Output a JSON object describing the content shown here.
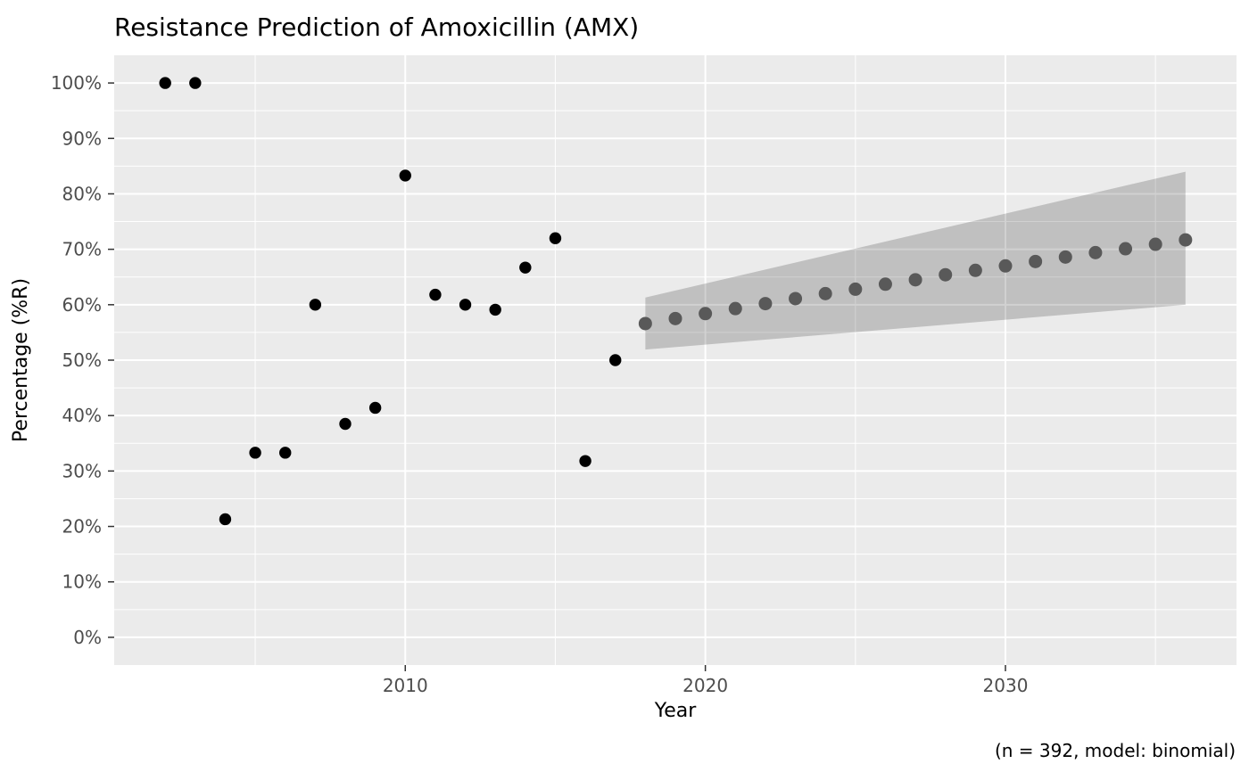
{
  "chart_data": {
    "type": "scatter",
    "title": "Resistance Prediction of Amoxicillin (AMX)",
    "xlabel": "Year",
    "ylabel": "Percentage (%R)",
    "caption": "(n = 392, model: binomial)",
    "xlim": [
      2000.3,
      2037.7
    ],
    "ylim": [
      -5,
      105
    ],
    "grid": true,
    "legend_position": "none",
    "x_major_ticks": [
      2010,
      2020,
      2030
    ],
    "x_tick_labels": [
      "2010",
      "2020",
      "2030"
    ],
    "x_minor_ticks": [
      2005,
      2015,
      2025,
      2035
    ],
    "y_major_ticks": [
      0,
      10,
      20,
      30,
      40,
      50,
      60,
      70,
      80,
      90,
      100
    ],
    "y_tick_labels": [
      "0%",
      "10%",
      "20%",
      "30%",
      "40%",
      "50%",
      "60%",
      "70%",
      "80%",
      "90%",
      "100%"
    ],
    "y_minor_ticks": [
      5,
      15,
      25,
      35,
      45,
      55,
      65,
      75,
      85,
      95
    ],
    "series": [
      {
        "name": "observed",
        "color": "#000000",
        "x": [
          2002,
          2003,
          2004,
          2005,
          2006,
          2007,
          2008,
          2009,
          2010,
          2011,
          2012,
          2013,
          2014,
          2015,
          2016,
          2017
        ],
        "y": [
          100,
          100,
          21.3,
          33.3,
          33.3,
          60.0,
          38.5,
          41.4,
          83.3,
          61.8,
          60.0,
          59.1,
          66.7,
          72.0,
          31.8,
          50.0
        ]
      },
      {
        "name": "predicted",
        "color": "#595959",
        "x": [
          2018,
          2019,
          2020,
          2021,
          2022,
          2023,
          2024,
          2025,
          2026,
          2027,
          2028,
          2029,
          2030,
          2031,
          2032,
          2033,
          2034,
          2035,
          2036
        ],
        "y": [
          56.6,
          57.5,
          58.4,
          59.3,
          60.2,
          61.1,
          62.0,
          62.8,
          63.7,
          64.5,
          65.4,
          66.2,
          67.0,
          67.8,
          68.6,
          69.4,
          70.1,
          70.9,
          71.7
        ]
      }
    ],
    "ribbon": {
      "name": "confidence-interval",
      "color": "rgba(0,0,0,0.18)",
      "x": [
        2018,
        2036
      ],
      "lower": [
        51.9,
        60.0
      ],
      "upper": [
        61.3,
        84.0
      ]
    }
  },
  "theme": {
    "background": "#ffffff",
    "panel_bg": "#ebebeb",
    "grid_color": "#ffffff",
    "tick_mark_color": "#333333",
    "tick_label_color": "#4d4d4d",
    "title_color": "#000000"
  }
}
